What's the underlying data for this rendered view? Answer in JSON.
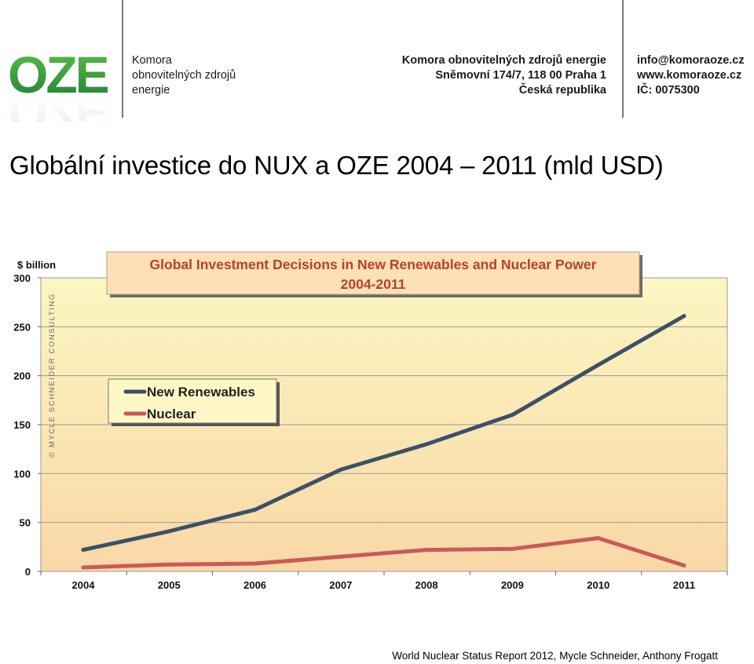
{
  "header": {
    "logo_text": "OZE",
    "org_name_lines": [
      "Komora",
      "obnovitelných zdrojů",
      "energie"
    ],
    "address_lines": [
      "Komora obnovitelných zdrojů energie",
      "Sněmovní 174/7, 118 00  Praha 1",
      "Česká republika"
    ],
    "contact_lines": [
      "info@komoraoze.cz",
      "www.komoraoze.cz",
      "IČ: 0075300"
    ]
  },
  "slide_title": "Globální investice do NUX a OZE 2004 – 2011 (mld USD)",
  "source": "World Nuclear Status Report 2012, Mycle Schneider, Anthony Frogatt",
  "colors": {
    "renewables": "#3d5068",
    "nuclear": "#c95a59",
    "plot_top": "#fbf6c2",
    "plot_bottom": "#f9d8a6",
    "title_box": "#fde0b6",
    "title_text": "#b7412c",
    "logo_green": "#2e9a3e"
  },
  "chart_data": {
    "type": "line",
    "title": "Global Investment Decisions in New Renewables and Nuclear Power",
    "subtitle": "2004-2011",
    "ylabel": "$ billion",
    "watermark": "© MYCLE SCHNEIDER CONSULTING",
    "categories": [
      "2004",
      "2005",
      "2006",
      "2007",
      "2008",
      "2009",
      "2010",
      "2011"
    ],
    "ylim": [
      0,
      300
    ],
    "yticks": [
      0,
      50,
      100,
      150,
      200,
      250,
      300
    ],
    "grid": true,
    "legend_position": "left",
    "series": [
      {
        "name": "New Renewables",
        "values": [
          22,
          41,
          63,
          104,
          130,
          160,
          211,
          261
        ]
      },
      {
        "name": "Nuclear",
        "values": [
          4,
          7,
          8,
          15,
          22,
          23,
          34,
          6
        ]
      }
    ]
  }
}
